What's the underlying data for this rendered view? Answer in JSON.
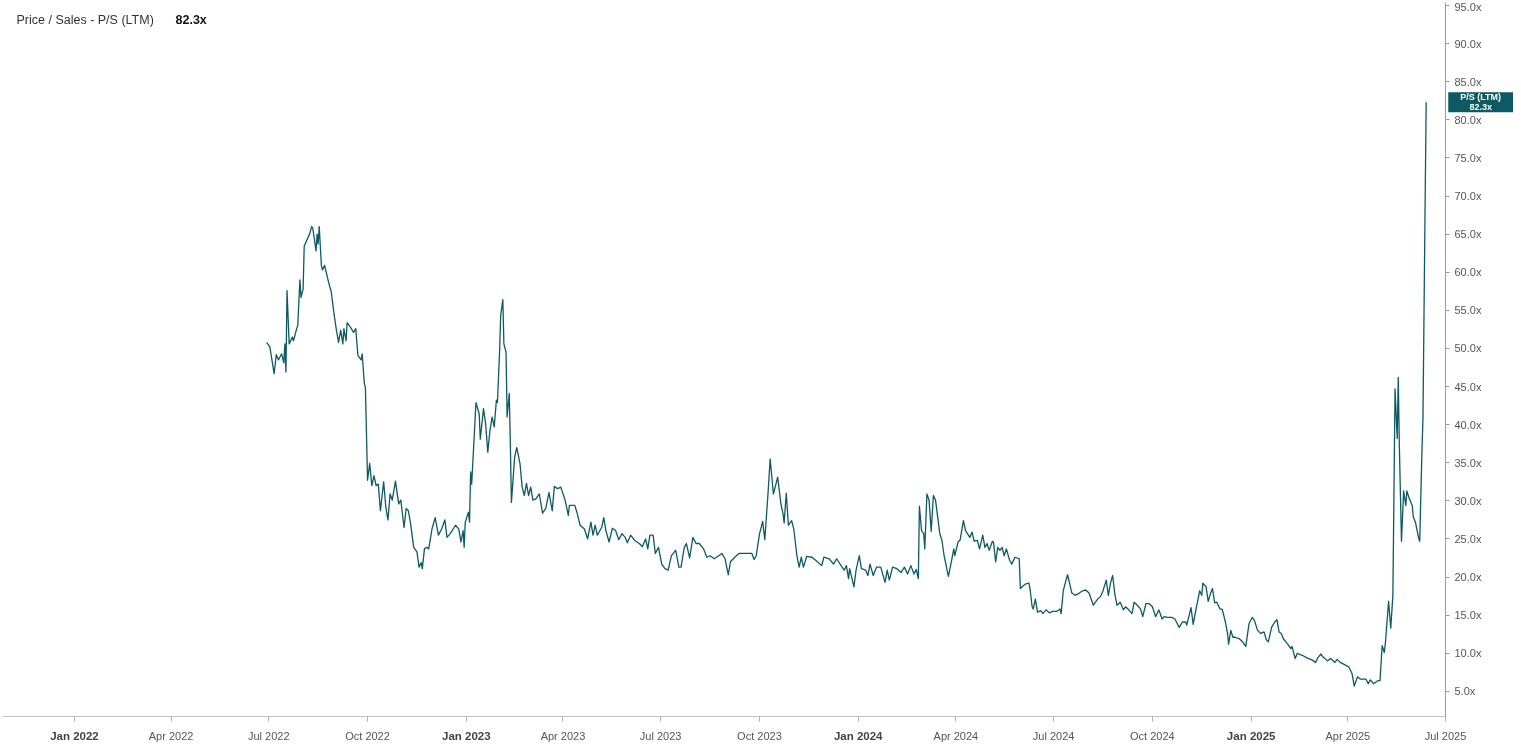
{
  "chart_data": {
    "type": "line",
    "title": "Price / Sales - P/S (LTM)",
    "subtitle": "82.3x",
    "xlim": [
      "2021-10-26",
      "2025-07-01"
    ],
    "xticks": [
      {
        "value": "2022-01-01",
        "label": "Jan 2022"
      },
      {
        "value": "2022-04-01",
        "label": "Apr 2022"
      },
      {
        "value": "2022-07-01",
        "label": "Jul 2022"
      },
      {
        "value": "2022-10-01",
        "label": "Oct 2022"
      },
      {
        "value": "2023-01-01",
        "label": "Jan 2023"
      },
      {
        "value": "2023-04-01",
        "label": "Apr 2023"
      },
      {
        "value": "2023-07-01",
        "label": "Jul 2023"
      },
      {
        "value": "2023-10-01",
        "label": "Oct 2023"
      },
      {
        "value": "2024-01-01",
        "label": "Jan 2024"
      },
      {
        "value": "2024-04-01",
        "label": "Apr 2024"
      },
      {
        "value": "2024-07-01",
        "label": "Jul 2024"
      },
      {
        "value": "2024-10-01",
        "label": "Oct 2024"
      },
      {
        "value": "2025-01-01",
        "label": "Jan 2025"
      },
      {
        "value": "2025-04-01",
        "label": "Apr 2025"
      },
      {
        "value": "2025-07-01",
        "label": "Jul 2025"
      }
    ],
    "ylim": [
      1.7,
      95.4
    ],
    "yticks": [
      {
        "value": 5,
        "label": "5.0x"
      },
      {
        "value": 10,
        "label": "10.0x"
      },
      {
        "value": 15,
        "label": "15.0x"
      },
      {
        "value": 20,
        "label": "20.0x"
      },
      {
        "value": 25,
        "label": "25.0x"
      },
      {
        "value": 30,
        "label": "30.0x"
      },
      {
        "value": 35,
        "label": "35.0x"
      },
      {
        "value": 40,
        "label": "40.0x"
      },
      {
        "value": 45,
        "label": "45.0x"
      },
      {
        "value": 50,
        "label": "50.0x"
      },
      {
        "value": 55,
        "label": "55.0x"
      },
      {
        "value": 60,
        "label": "60.0x"
      },
      {
        "value": 65,
        "label": "65.0x"
      },
      {
        "value": 70,
        "label": "70.0x"
      },
      {
        "value": 75,
        "label": "75.0x"
      },
      {
        "value": 80,
        "label": "80.0x"
      },
      {
        "value": 85,
        "label": "85.0x"
      },
      {
        "value": 90,
        "label": "90.0x"
      },
      {
        "value": 95,
        "label": "95.0x"
      }
    ],
    "annotations": [
      "82.3x"
    ],
    "series": [
      {
        "name": "P/S (LTM)",
        "color": "#0e5a63",
        "x": [
          "2022-06-29",
          "2022-07-02",
          "2022-07-06",
          "2022-07-08",
          "2022-07-10",
          "2022-07-13",
          "2022-07-15",
          "2022-07-16",
          "2022-07-17",
          "2022-07-18",
          "2022-07-20",
          "2022-07-23",
          "2022-07-24",
          "2022-07-27",
          "2022-07-28",
          "2022-07-30",
          "2022-07-31",
          "2022-08-02",
          "2022-08-03",
          "2022-08-06",
          "2022-08-08",
          "2022-08-10",
          "2022-08-11",
          "2022-08-14",
          "2022-08-15",
          "2022-08-16",
          "2022-08-17",
          "2022-08-19",
          "2022-08-20",
          "2022-08-22",
          "2022-08-25",
          "2022-08-27",
          "2022-08-28",
          "2022-08-31",
          "2022-09-02",
          "2022-09-04",
          "2022-09-06",
          "2022-09-08",
          "2022-09-09",
          "2022-09-11",
          "2022-09-12",
          "2022-09-15",
          "2022-09-18",
          "2022-09-20",
          "2022-09-22",
          "2022-09-25",
          "2022-09-26",
          "2022-09-28",
          "2022-09-29",
          "2022-10-01",
          "2022-10-03",
          "2022-10-05",
          "2022-10-07",
          "2022-10-09",
          "2022-10-11",
          "2022-10-13",
          "2022-10-16",
          "2022-10-18",
          "2022-10-20",
          "2022-10-22",
          "2022-10-24",
          "2022-10-27",
          "2022-10-30",
          "2022-11-01",
          "2022-11-04",
          "2022-11-06",
          "2022-11-08",
          "2022-11-10",
          "2022-11-13",
          "2022-11-16",
          "2022-11-18",
          "2022-11-20",
          "2022-11-21",
          "2022-11-23",
          "2022-11-25",
          "2022-11-27",
          "2022-11-30",
          "2022-12-03",
          "2022-12-06",
          "2022-12-09",
          "2022-12-12",
          "2022-12-14",
          "2022-12-17",
          "2022-12-22",
          "2022-12-25",
          "2022-12-27",
          "2022-12-29",
          "2022-12-30",
          "2022-12-31",
          "2023-01-03",
          "2023-01-04",
          "2023-01-05",
          "2023-01-06",
          "2023-01-10",
          "2023-01-13",
          "2023-01-14",
          "2023-01-17",
          "2023-01-19",
          "2023-01-21",
          "2023-01-23",
          "2023-01-25",
          "2023-01-27",
          "2023-01-29",
          "2023-01-30",
          "2023-02-01",
          "2023-02-02",
          "2023-02-04",
          "2023-02-05",
          "2023-02-07",
          "2023-02-08",
          "2023-02-10",
          "2023-02-11",
          "2023-02-12",
          "2023-02-15",
          "2023-02-17",
          "2023-02-20",
          "2023-02-22",
          "2023-02-24",
          "2023-02-26",
          "2023-02-28",
          "2023-03-02",
          "2023-03-04",
          "2023-03-07",
          "2023-03-10",
          "2023-03-13",
          "2023-03-16",
          "2023-03-19",
          "2023-03-22",
          "2023-03-24",
          "2023-03-27",
          "2023-03-30",
          "2023-04-03",
          "2023-04-06",
          "2023-04-07",
          "2023-04-12",
          "2023-04-14",
          "2023-04-17",
          "2023-04-21",
          "2023-04-24",
          "2023-04-27",
          "2023-04-29",
          "2023-05-01",
          "2023-05-03",
          "2023-05-07",
          "2023-05-09",
          "2023-05-11",
          "2023-05-14",
          "2023-05-17",
          "2023-05-20",
          "2023-05-23",
          "2023-05-26",
          "2023-05-29",
          "2023-05-31",
          "2023-06-03",
          "2023-06-07",
          "2023-06-11",
          "2023-06-14",
          "2023-06-17",
          "2023-06-19",
          "2023-06-21",
          "2023-06-24",
          "2023-06-26",
          "2023-06-29",
          "2023-07-02",
          "2023-07-05",
          "2023-07-08",
          "2023-07-11",
          "2023-07-15",
          "2023-07-18",
          "2023-07-20",
          "2023-07-23",
          "2023-07-25",
          "2023-07-28",
          "2023-07-31",
          "2023-08-03",
          "2023-08-06",
          "2023-08-10",
          "2023-08-13",
          "2023-08-16",
          "2023-08-20",
          "2023-08-23",
          "2023-08-27",
          "2023-08-30",
          "2023-09-02",
          "2023-09-04",
          "2023-09-08",
          "2023-09-12",
          "2023-09-18",
          "2023-09-24",
          "2023-09-26",
          "2023-09-28",
          "2023-10-01",
          "2023-10-04",
          "2023-10-06",
          "2023-10-09",
          "2023-10-11",
          "2023-10-14",
          "2023-10-16",
          "2023-10-18",
          "2023-10-21",
          "2023-10-23",
          "2023-10-24",
          "2023-10-26",
          "2023-10-28",
          "2023-10-31",
          "2023-11-02",
          "2023-11-05",
          "2023-11-07",
          "2023-11-09",
          "2023-11-11",
          "2023-11-14",
          "2023-11-19",
          "2023-11-24",
          "2023-11-28",
          "2023-11-30",
          "2023-12-05",
          "2023-12-09",
          "2023-12-12",
          "2023-12-16",
          "2023-12-19",
          "2023-12-21",
          "2023-12-23",
          "2023-12-24",
          "2023-12-28",
          "2023-12-30",
          "2024-01-02",
          "2024-01-04",
          "2024-01-08",
          "2024-01-10",
          "2024-01-12",
          "2024-01-15",
          "2024-01-18",
          "2024-01-22",
          "2024-01-26",
          "2024-01-28",
          "2024-01-30",
          "2024-02-02",
          "2024-02-06",
          "2024-02-10",
          "2024-02-13",
          "2024-02-16",
          "2024-02-19",
          "2024-02-22",
          "2024-02-24",
          "2024-02-26",
          "2024-02-27",
          "2024-02-29",
          "2024-03-02",
          "2024-03-03",
          "2024-03-05",
          "2024-03-07",
          "2024-03-09",
          "2024-03-11",
          "2024-03-13",
          "2024-03-15",
          "2024-03-17",
          "2024-03-19",
          "2024-03-21",
          "2024-03-25",
          "2024-03-28",
          "2024-03-30",
          "2024-03-31",
          "2024-04-03",
          "2024-04-05",
          "2024-04-08",
          "2024-04-10",
          "2024-04-14",
          "2024-04-16",
          "2024-04-18",
          "2024-04-21",
          "2024-04-23",
          "2024-04-26",
          "2024-04-28",
          "2024-04-30",
          "2024-05-02",
          "2024-05-05",
          "2024-05-06",
          "2024-05-08",
          "2024-05-10",
          "2024-05-12",
          "2024-05-14",
          "2024-05-16",
          "2024-05-18",
          "2024-05-21",
          "2024-05-23",
          "2024-05-26",
          "2024-05-30",
          "2024-05-31",
          "2024-06-03",
          "2024-06-05",
          "2024-06-08",
          "2024-06-09",
          "2024-06-11",
          "2024-06-12",
          "2024-06-14",
          "2024-06-16",
          "2024-06-19",
          "2024-06-21",
          "2024-06-24",
          "2024-06-27",
          "2024-06-30",
          "2024-07-04",
          "2024-07-07",
          "2024-07-08",
          "2024-07-10",
          "2024-07-12",
          "2024-07-14",
          "2024-07-16",
          "2024-07-18",
          "2024-07-21",
          "2024-07-25",
          "2024-07-28",
          "2024-07-31",
          "2024-08-03",
          "2024-08-07",
          "2024-08-11",
          "2024-08-14",
          "2024-08-16",
          "2024-08-19",
          "2024-08-21",
          "2024-08-23",
          "2024-08-25",
          "2024-08-27",
          "2024-08-29",
          "2024-09-01",
          "2024-09-04",
          "2024-09-06",
          "2024-09-09",
          "2024-09-12",
          "2024-09-14",
          "2024-09-17",
          "2024-09-20",
          "2024-09-22",
          "2024-09-25",
          "2024-09-28",
          "2024-10-01",
          "2024-10-04",
          "2024-10-07",
          "2024-10-10",
          "2024-10-12",
          "2024-10-15",
          "2024-10-19",
          "2024-10-22",
          "2024-10-26",
          "2024-10-29",
          "2024-11-01",
          "2024-11-02",
          "2024-11-06",
          "2024-11-08",
          "2024-11-11",
          "2024-11-12",
          "2024-11-14",
          "2024-11-16",
          "2024-11-17",
          "2024-11-20",
          "2024-11-22",
          "2024-11-24",
          "2024-11-26",
          "2024-11-28",
          "2024-11-30",
          "2024-12-03",
          "2024-12-05",
          "2024-12-08",
          "2024-12-10",
          "2024-12-11",
          "2024-12-13",
          "2024-12-15",
          "2024-12-17",
          "2024-12-21",
          "2024-12-24",
          "2024-12-27",
          "2024-12-30",
          "2025-01-02",
          "2025-01-04",
          "2025-01-07",
          "2025-01-10",
          "2025-01-13",
          "2025-01-15",
          "2025-01-17",
          "2025-01-20",
          "2025-01-23",
          "2025-01-25",
          "2025-01-27",
          "2025-01-29",
          "2025-01-31",
          "2025-02-04",
          "2025-02-07",
          "2025-02-08",
          "2025-02-11",
          "2025-02-13",
          "2025-02-18",
          "2025-02-22",
          "2025-02-27",
          "2025-03-02",
          "2025-03-04",
          "2025-03-07",
          "2025-03-09",
          "2025-03-13",
          "2025-03-16",
          "2025-03-20",
          "2025-03-22",
          "2025-03-25",
          "2025-03-29",
          "2025-04-02",
          "2025-04-05",
          "2025-04-07",
          "2025-04-10",
          "2025-04-13",
          "2025-04-18",
          "2025-04-20",
          "2025-04-22",
          "2025-04-25",
          "2025-04-29",
          "2025-05-01",
          "2025-05-03",
          "2025-05-05",
          "2025-05-06",
          "2025-05-09",
          "2025-05-11",
          "2025-05-13",
          "2025-05-15",
          "2025-05-17",
          "2025-05-18",
          "2025-05-19",
          "2025-05-21",
          "2025-05-23",
          "2025-05-25",
          "2025-05-26",
          "2025-05-28",
          "2025-05-31",
          "2025-06-01",
          "2025-06-03",
          "2025-06-06",
          "2025-06-07",
          "2025-06-09",
          "2025-06-10",
          "2025-06-12",
          "2025-06-13"
        ],
        "values": [
          50.8,
          50.2,
          46.7,
          49.2,
          48.5,
          49.3,
          48.1,
          50.6,
          46.9,
          57.6,
          50.6,
          51.5,
          51.0,
          52.6,
          53.0,
          59.0,
          56.7,
          57.8,
          63.4,
          64.4,
          65.0,
          66.0,
          65.8,
          62.8,
          65.0,
          63.7,
          66.0,
          60.9,
          60.3,
          60.9,
          59.1,
          58.0,
          57.6,
          54.3,
          52.4,
          50.8,
          52.4,
          50.6,
          52.6,
          51.0,
          53.4,
          52.8,
          52.1,
          52.6,
          49.1,
          48.5,
          49.3,
          45.4,
          44.9,
          32.7,
          34.9,
          32.0,
          33.3,
          32.0,
          32.2,
          28.7,
          32.5,
          29.2,
          27.5,
          30.9,
          30.1,
          32.6,
          29.6,
          30.1,
          26.5,
          29.0,
          28.7,
          27.1,
          23.9,
          23.3,
          21.3,
          21.9,
          21.1,
          23.7,
          23.9,
          23.7,
          26.3,
          27.8,
          25.5,
          26.3,
          27.5,
          25.2,
          25.7,
          26.8,
          26.3,
          24.6,
          26.1,
          23.9,
          27.2,
          28.5,
          27.2,
          33.8,
          32.2,
          42.9,
          41.4,
          38.1,
          42.1,
          40.1,
          36.4,
          39.2,
          41.0,
          39.7,
          43.2,
          42.9,
          49.7,
          54.3,
          56.4,
          50.6,
          49.5,
          41.0,
          44.1,
          37.5,
          29.8,
          35.7,
          37.0,
          34.9,
          31.8,
          30.7,
          32.3,
          30.7,
          31.8,
          30.1,
          30.3,
          30.9,
          28.4,
          29.0,
          31.1,
          28.7,
          31.9,
          31.6,
          31.8,
          30.1,
          28.1,
          29.4,
          29.4,
          28.5,
          26.8,
          26.3,
          25.0,
          27.2,
          25.5,
          26.8,
          25.5,
          26.5,
          27.8,
          26.1,
          24.6,
          26.4,
          26.1,
          24.9,
          25.7,
          25.2,
          24.5,
          25.5,
          24.8,
          24.4,
          24.0,
          25.0,
          23.7,
          25.5,
          25.5,
          23.1,
          23.9,
          21.7,
          21.1,
          20.9,
          22.8,
          23.5,
          21.3,
          21.3,
          23.9,
          24.4,
          22.5,
          25.2,
          24.4,
          24.4,
          23.7,
          22.6,
          22.8,
          22.4,
          22.7,
          23.1,
          22.4,
          20.3,
          22.0,
          22.6,
          23.1,
          23.1,
          23.1,
          22.3,
          22.8,
          25.6,
          27.3,
          24.9,
          31.0,
          35.5,
          30.9,
          32.0,
          33.1,
          29.6,
          28.3,
          27.1,
          31.0,
          26.8,
          27.4,
          26.3,
          22.7,
          21.3,
          22.6,
          21.3,
          22.7,
          22.6,
          22.0,
          21.5,
          22.6,
          22.4,
          21.7,
          22.4,
          21.5,
          20.9,
          21.5,
          19.8,
          21.1,
          18.7,
          20.9,
          22.8,
          21.1,
          20.9,
          20.2,
          21.7,
          20.2,
          21.3,
          21.3,
          19.3,
          20.9,
          19.6,
          21.3,
          21.1,
          20.6,
          21.3,
          20.4,
          21.5,
          20.4,
          21.0,
          19.8,
          29.3,
          26.1,
          25.7,
          23.7,
          30.9,
          30.1,
          26.0,
          30.7,
          30.1,
          27.9,
          25.7,
          24.8,
          22.8,
          20.1,
          22.2,
          23.7,
          22.8,
          24.6,
          24.9,
          27.4,
          26.1,
          25.2,
          25.9,
          24.7,
          24.8,
          23.7,
          25.5,
          23.9,
          24.4,
          23.5,
          24.7,
          24.6,
          22.0,
          23.9,
          23.5,
          23.9,
          22.8,
          23.7,
          22.2,
          21.7,
          22.6,
          22.4,
          18.5,
          18.9,
          19.1,
          19.2,
          18.5,
          16.1,
          15.8,
          17.1,
          15.4,
          15.6,
          15.2,
          15.7,
          15.3,
          15.5,
          15.5,
          15.8,
          15.2,
          18.2,
          19.3,
          20.3,
          19.1,
          17.9,
          17.6,
          17.9,
          18.2,
          18.3,
          17.9,
          16.3,
          17.1,
          17.5,
          18.2,
          19.6,
          17.6,
          19.2,
          20.2,
          17.8,
          16.3,
          16.7,
          15.7,
          16.1,
          15.7,
          15.2,
          16.7,
          16.3,
          15.8,
          14.8,
          16.5,
          16.5,
          16.1,
          14.8,
          15.7,
          14.5,
          14.8,
          14.7,
          14.7,
          14.5,
          13.4,
          14.1,
          14.1,
          13.7,
          16.0,
          13.8,
          16.1,
          16.7,
          18.2,
          17.6,
          19.2,
          18.7,
          16.8,
          17.8,
          18.5,
          16.6,
          16.7,
          15.8,
          15.8,
          14.1,
          12.6,
          11.2,
          13.0,
          12.1,
          12.1,
          11.9,
          11.5,
          10.9,
          13.9,
          14.7,
          14.3,
          13.0,
          12.6,
          12.8,
          11.8,
          11.5,
          13.4,
          14.1,
          14.4,
          12.8,
          12.6,
          11.9,
          11.2,
          10.6,
          10.9,
          9.3,
          10.0,
          9.7,
          9.4,
          9.1,
          8.8,
          9.4,
          9.9,
          9.5,
          9.0,
          9.3,
          8.8,
          9.2,
          8.8,
          8.5,
          8.2,
          7.3,
          5.7,
          6.9,
          6.6,
          6.6,
          6.0,
          6.5,
          6.0,
          6.4,
          6.4,
          11.0,
          10.1,
          11.3,
          16.8,
          13.3,
          17.6,
          44.7,
          38.2,
          46.2,
          37.3,
          24.7,
          31.3,
          29.4,
          31.3,
          30.4,
          29.4,
          27.9,
          27.2,
          25.1,
          24.7,
          36.3,
          40.7,
          68.8,
          82.3
        ]
      }
    ]
  }
}
